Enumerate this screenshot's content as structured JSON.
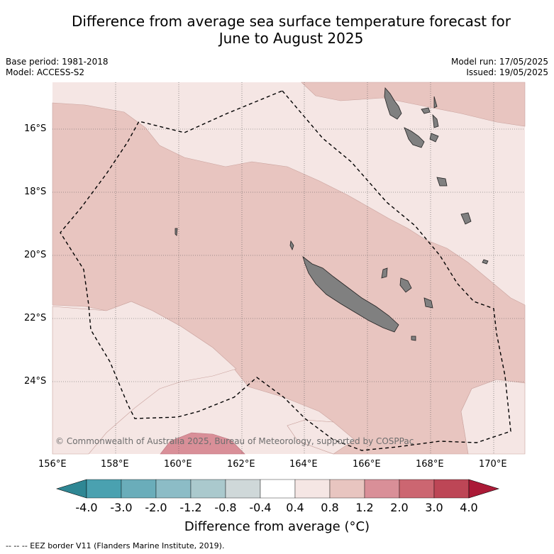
{
  "header": {
    "title_line1": "Difference from average sea surface temperature forecast for",
    "title_line2": "June to August 2025"
  },
  "info_left": {
    "base_period": "Base period: 1981-2018",
    "model": "Model: ACCESS-S2"
  },
  "info_right": {
    "model_run": "Model run: 17/05/2025",
    "issued": "Issued: 19/05/2025"
  },
  "map": {
    "lat_labels": [
      "16°S",
      "18°S",
      "20°S",
      "22°S",
      "24°S"
    ],
    "lon_labels": [
      "156°E",
      "158°E",
      "160°E",
      "162°E",
      "164°E",
      "166°E",
      "168°E",
      "170°E"
    ],
    "copyright": "© Commonwealth of Australia 2025, Bureau of Meteorology, supported by COSPPac",
    "land_color": "#808080",
    "ocean_levels": {
      "0.4 to 0.8": "#f5e6e4",
      "0.8 to 1.2": "#e8c5c0",
      "1.2 to 2.0": "#d98f98"
    }
  },
  "colorbar": {
    "labels": [
      "-4.0",
      "-3.0",
      "-2.0",
      "-1.2",
      "-0.8",
      "-0.4",
      "0.4",
      "0.8",
      "1.2",
      "2.0",
      "3.0",
      "4.0"
    ],
    "colors": [
      "#4aa1b0",
      "#6aadba",
      "#8cbcc6",
      "#aac9cd",
      "#cfd8d9",
      "#ffffff",
      "#f5e6e4",
      "#e8c5c0",
      "#d98f98",
      "#cc6671",
      "#bd4656"
    ],
    "under_color": "#2f8794",
    "over_color": "#ab1a37",
    "title": "Difference from average (°C)"
  },
  "footer": "--  --  -- EEZ border V11 (Flanders Marine Institute, 2019)."
}
